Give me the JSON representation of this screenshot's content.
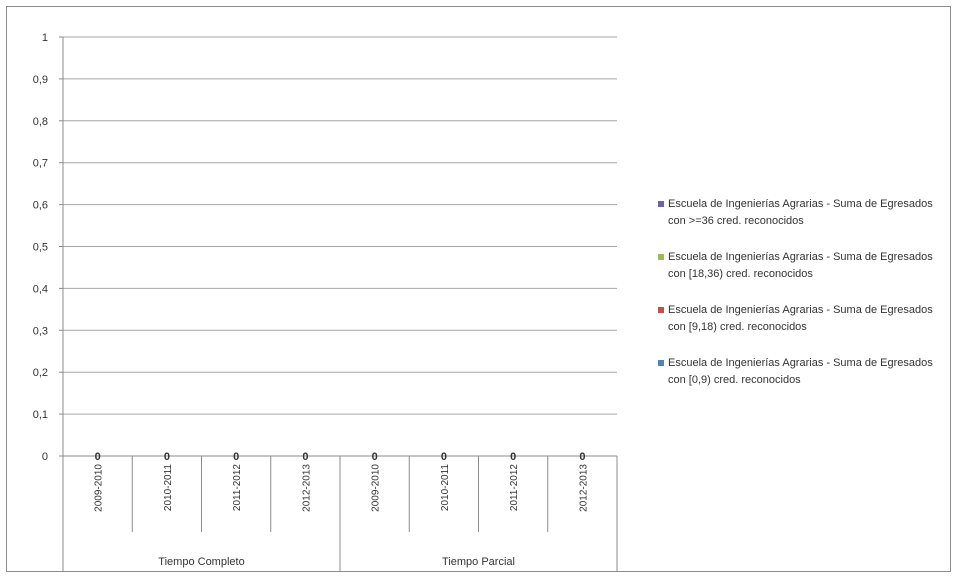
{
  "chart_data": {
    "type": "bar",
    "stacked": true,
    "title": "",
    "xlabel": "",
    "ylabel": "",
    "ylim": [
      0,
      1
    ],
    "yticks": [
      "0",
      "0,1",
      "0,2",
      "0,3",
      "0,4",
      "0,5",
      "0,6",
      "0,7",
      "0,8",
      "0,9",
      "1"
    ],
    "grid": true,
    "legend_position": "right",
    "groups": [
      {
        "label": "Tiempo Completo",
        "categories": [
          "2009-2010",
          "2010-2011",
          "2011-2012",
          "2012-2013"
        ]
      },
      {
        "label": "Tiempo Parcial",
        "categories": [
          "2009-2010",
          "2010-2011",
          "2011-2012",
          "2012-2013"
        ]
      }
    ],
    "categories": [
      "2009-2010",
      "2010-2011",
      "2011-2012",
      "2012-2013",
      "2009-2010",
      "2010-2011",
      "2011-2012",
      "2012-2013"
    ],
    "series": [
      {
        "name": "Escuela de Ingenierías Agrarias - Suma de Egresados con >=36 cred. reconocidos",
        "color": "#7060a8",
        "values": [
          0,
          0,
          0,
          0,
          0,
          0,
          0,
          0
        ]
      },
      {
        "name": "Escuela de Ingenierías Agrarias - Suma de Egresados con [18,36) cred. reconocidos",
        "color": "#9bbb59",
        "values": [
          0,
          0,
          0,
          0,
          0,
          0,
          0,
          0
        ]
      },
      {
        "name": "Escuela de Ingenierías Agrarias - Suma de Egresados con [9,18) cred. reconocidos",
        "color": "#c0504d",
        "values": [
          0,
          0,
          0,
          0,
          0,
          0,
          0,
          0
        ]
      },
      {
        "name": "Escuela de Ingenierías Agrarias - Suma de Egresados con [0,9) cred. reconocidos",
        "color": "#4f81bd",
        "values": [
          0,
          0,
          0,
          0,
          0,
          0,
          0,
          0
        ]
      }
    ],
    "data_labels": [
      "0",
      "0",
      "0",
      "0",
      "0",
      "0",
      "0",
      "0"
    ]
  }
}
